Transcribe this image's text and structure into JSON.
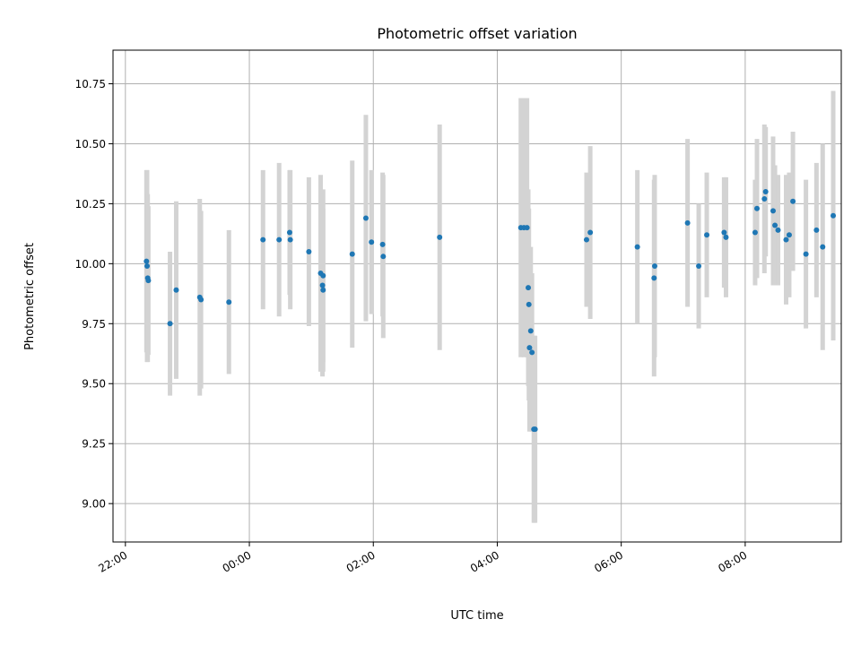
{
  "chart_data": {
    "type": "scatter",
    "title": "Photometric offset variation",
    "xlabel": "UTC time",
    "ylabel": "Photometric offset",
    "x_ticks": [
      "22:00",
      "00:00",
      "02:00",
      "04:00",
      "06:00",
      "08:00"
    ],
    "x_tick_hours": [
      -2,
      0,
      2,
      4,
      6,
      8
    ],
    "y_ticks": [
      "9.00",
      "9.25",
      "9.50",
      "9.75",
      "10.00",
      "10.25",
      "10.50",
      "10.75"
    ],
    "xlim": [
      -2.2,
      9.55
    ],
    "ylim": [
      8.84,
      10.89
    ],
    "grid": true,
    "colors": {
      "points": "#1f77b4",
      "errorbars": "#d3d3d3",
      "grid": "#b0b0b0"
    },
    "x_hours": [
      -1.66,
      -1.65,
      -1.64,
      -1.63,
      -1.28,
      -1.18,
      -0.8,
      -0.78,
      -0.33,
      0.22,
      0.48,
      0.65,
      0.66,
      0.96,
      1.15,
      1.18,
      1.19,
      1.19,
      1.66,
      1.88,
      1.97,
      2.15,
      2.16,
      3.07,
      4.38,
      4.43,
      4.48,
      4.5,
      4.51,
      4.52,
      4.54,
      4.56,
      4.59,
      4.61,
      5.44,
      5.5,
      6.26,
      6.53,
      6.54,
      7.07,
      7.25,
      7.38,
      7.66,
      7.69,
      8.16,
      8.19,
      8.31,
      8.33,
      8.45,
      8.48,
      8.53,
      8.66,
      8.71,
      8.77,
      8.98,
      9.15,
      9.25,
      9.42
    ],
    "y": [
      10.01,
      9.99,
      9.94,
      9.93,
      9.75,
      9.89,
      9.86,
      9.85,
      9.84,
      10.1,
      10.1,
      10.13,
      10.1,
      10.05,
      9.96,
      9.91,
      9.89,
      9.95,
      10.04,
      10.19,
      10.09,
      10.08,
      10.03,
      10.11,
      10.15,
      10.15,
      10.15,
      9.9,
      9.83,
      9.65,
      9.72,
      9.63,
      9.31,
      9.31,
      10.1,
      10.13,
      10.07,
      9.94,
      9.99,
      10.17,
      9.99,
      10.12,
      10.13,
      10.11,
      10.13,
      10.23,
      10.27,
      10.3,
      10.22,
      10.16,
      10.14,
      10.1,
      10.12,
      10.26,
      10.04,
      10.14,
      10.07,
      10.2
    ],
    "yerr": [
      0.38,
      0.4,
      0.35,
      0.31,
      0.3,
      0.37,
      0.41,
      0.37,
      0.3,
      0.29,
      0.32,
      0.26,
      0.29,
      0.31,
      0.41,
      0.38,
      0.34,
      0.36,
      0.39,
      0.43,
      0.3,
      0.3,
      0.34,
      0.47,
      0.54,
      0.54,
      0.54,
      0.41,
      0.4,
      0.35,
      0.35,
      0.33,
      0.39,
      0.39,
      0.28,
      0.36,
      0.32,
      0.41,
      0.38,
      0.35,
      0.26,
      0.26,
      0.23,
      0.25,
      0.22,
      0.29,
      0.31,
      0.27,
      0.31,
      0.25,
      0.23,
      0.27,
      0.26,
      0.29,
      0.31,
      0.28,
      0.43,
      0.52
    ]
  }
}
